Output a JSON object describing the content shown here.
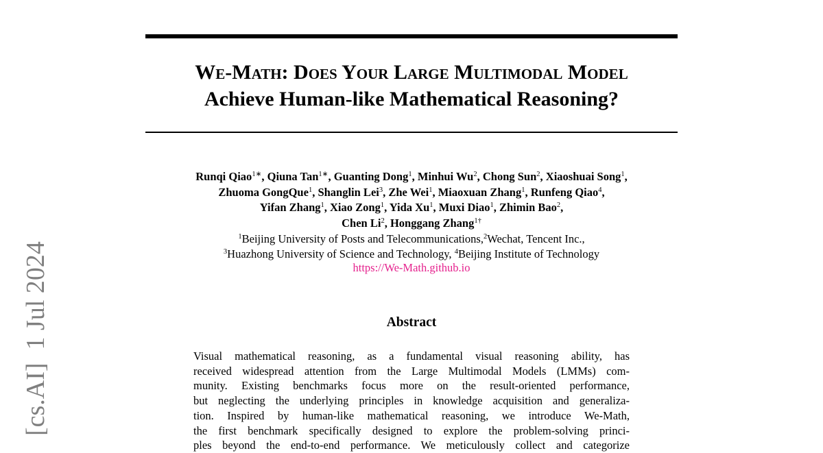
{
  "sidebar": "[cs.AI]  1 Jul 2024",
  "header": {
    "title_lines": [
      "We-Math: Does Your Large Multimodal Model",
      "Achieve Human-like Mathematical Reasoning?"
    ]
  },
  "authors": {
    "lines": [
      [
        {
          "name": "Runqi Qiao",
          "sup": "1∗",
          "after": ","
        },
        {
          "name": "Qiuna Tan",
          "sup": "1∗",
          "after": ","
        },
        {
          "name": "Guanting Dong",
          "sup": "1",
          "after": ","
        },
        {
          "name": "Minhui Wu",
          "sup": "2",
          "after": ","
        },
        {
          "name": "Chong Sun",
          "sup": "2",
          "after": ","
        },
        {
          "name": "Xiaoshuai Song",
          "sup": "1",
          "after": ","
        }
      ],
      [
        {
          "name": "Zhuoma GongQue",
          "sup": "1",
          "after": ","
        },
        {
          "name": "Shanglin Lei",
          "sup": "3",
          "after": ","
        },
        {
          "name": "Zhe Wei",
          "sup": "1",
          "after": ","
        },
        {
          "name": "Miaoxuan Zhang",
          "sup": "1",
          "after": ","
        },
        {
          "name": "Runfeng Qiao",
          "sup": "4",
          "after": ","
        }
      ],
      [
        {
          "name": "Yifan Zhang",
          "sup": "1",
          "after": ","
        },
        {
          "name": "Xiao Zong",
          "sup": "1",
          "after": ","
        },
        {
          "name": "Yida Xu",
          "sup": "1",
          "after": ","
        },
        {
          "name": "Muxi Diao",
          "sup": "1",
          "after": ","
        },
        {
          "name": "Zhimin Bao",
          "sup": "2",
          "after": ","
        }
      ],
      [
        {
          "name": "Chen Li",
          "sup": "2",
          "after": ","
        },
        {
          "name": "Honggang Zhang",
          "sup": "1†"
        }
      ]
    ]
  },
  "affiliations": {
    "lines": [
      [
        {
          "sup": "1"
        },
        {
          "text": "Beijing University of Posts and Telecommunications,"
        },
        {
          "sup": "2"
        },
        {
          "text": "Wechat, Tencent Inc.,"
        }
      ],
      [
        {
          "sup": "3"
        },
        {
          "text": "Huazhong University of Science and Technology, "
        },
        {
          "sup": "4"
        },
        {
          "text": "Beijing Institute of Technology"
        }
      ]
    ]
  },
  "url": "https://We-Math.github.io",
  "abstract": {
    "heading": "Abstract",
    "lines": [
      "Visual mathematical reasoning, as a fundamental visual reasoning ability, has",
      "received widespread attention from the Large Multimodal Models (LMMs) com-",
      "munity.  Existing benchmarks focus more on the result-oriented performance,",
      "but neglecting the underlying principles in knowledge acquisition and generaliza-",
      "tion. Inspired by human-like mathematical reasoning, we introduce We-Math,",
      "the first benchmark specifically designed to explore the problem-solving princi-",
      "ples beyond the end-to-end performance. We meticulously collect and categorize"
    ]
  }
}
